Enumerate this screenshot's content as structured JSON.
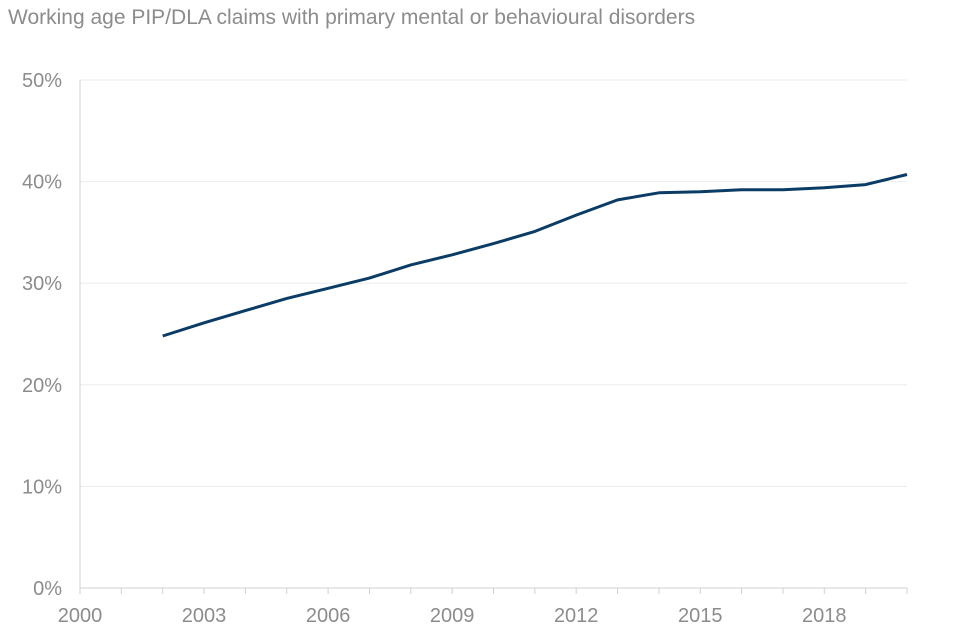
{
  "chart_data": {
    "type": "line",
    "title": "Working age PIP/DLA claims with primary mental or behavioural disorders",
    "xlabel": "",
    "ylabel": "",
    "xlim": [
      2000,
      2020
    ],
    "ylim": [
      0,
      50
    ],
    "x_ticks": [
      2000,
      2003,
      2006,
      2009,
      2012,
      2015,
      2018
    ],
    "y_ticks": [
      0,
      10,
      20,
      30,
      40,
      50
    ],
    "y_tick_suffix": "%",
    "grid": "horizontal",
    "legend": "none",
    "series": [
      {
        "color": "#0b3c66",
        "x": [
          2002,
          2003,
          2004,
          2005,
          2006,
          2007,
          2008,
          2009,
          2010,
          2011,
          2012,
          2013,
          2014,
          2015,
          2016,
          2017,
          2018,
          2019,
          2020
        ],
        "values": [
          24.8,
          26.1,
          27.3,
          28.5,
          29.5,
          30.5,
          31.8,
          32.8,
          33.9,
          35.1,
          36.7,
          38.2,
          38.9,
          39.0,
          39.2,
          39.2,
          39.4,
          39.7,
          40.7
        ]
      }
    ]
  }
}
